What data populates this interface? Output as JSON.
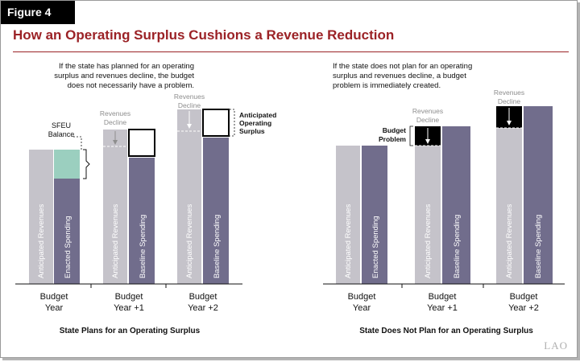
{
  "figure_label": "Figure 4",
  "title": "How an Operating Surplus Cushions a Revenue Reduction",
  "left_panel": {
    "note": [
      "If the state has planned for an operating",
      "surplus and revenues decline, the budget",
      "does not necessarily have a problem."
    ],
    "title": "State Plans for an Operating Surplus",
    "callouts": {
      "sfeu": [
        "SFEU",
        "Balance"
      ],
      "revenues_decline": [
        "Revenues",
        "Decline"
      ],
      "anticipated_surplus": [
        "Anticipated",
        "Operating",
        "Surplus"
      ]
    },
    "groups": [
      {
        "label": [
          "Budget",
          "Year"
        ],
        "bar1": "Anticipated Revenues",
        "bar2": "Enacted Spending"
      },
      {
        "label": [
          "Budget",
          "Year +1"
        ],
        "bar1": "Anticipated Revenues",
        "bar2": "Baseline Spending"
      },
      {
        "label": [
          "Budget",
          "Year +2"
        ],
        "bar1": "Anticipated Revenues",
        "bar2": "Baseline Spending"
      }
    ]
  },
  "right_panel": {
    "note": [
      "If the state does not plan for an operating",
      "surplus and revenues decline, a budget",
      "problem is immediately created."
    ],
    "title": "State Does Not Plan for an Operating Surplus",
    "callouts": {
      "revenues_decline": [
        "Revenues",
        "Decline"
      ],
      "budget_problem": [
        "Budget",
        "Problem"
      ]
    },
    "groups": [
      {
        "label": [
          "Budget",
          "Year"
        ],
        "bar1": "Anticipated Revenues",
        "bar2": "Enacted Spending"
      },
      {
        "label": [
          "Budget",
          "Year +1"
        ],
        "bar1": "Anticipated Revenues",
        "bar2": "Baseline Spending"
      },
      {
        "label": [
          "Budget",
          "Year +2"
        ],
        "bar1": "Anticipated Revenues",
        "bar2": "Baseline Spending"
      }
    ]
  },
  "logo": "LAO",
  "colors": {
    "revenues": "#c5c3ca",
    "spending": "#716d8c",
    "sfeu": "#9bcfbf",
    "title": "#9b2226",
    "budget_problem": "#000000"
  }
}
